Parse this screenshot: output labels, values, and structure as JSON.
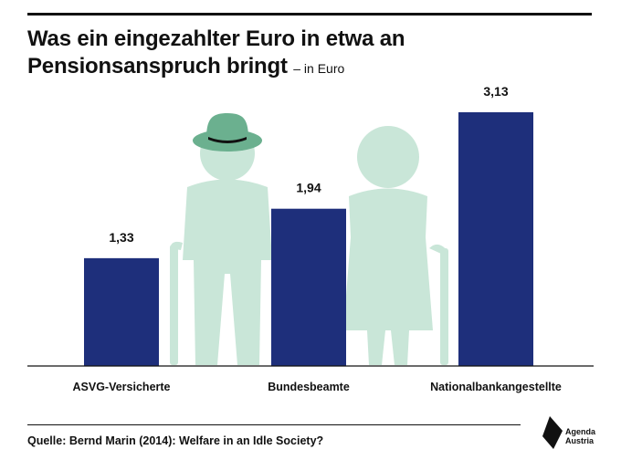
{
  "header": {
    "title_line1": "Was ein eingezahlter Euro in etwa an",
    "title_line2": "Pensionsanspruch bringt",
    "subtitle": "– in Euro"
  },
  "chart_data": {
    "type": "bar",
    "title": "Was ein eingezahlter Euro in etwa an Pensionsanspruch bringt",
    "subtitle": "– in Euro",
    "categories": [
      "ASVG-Versicherte",
      "Bundesbeamte",
      "Nationalbankangestellte"
    ],
    "values": [
      1.33,
      1.94,
      3.13
    ],
    "value_labels": [
      "1,33",
      "1,94",
      "3,13"
    ],
    "ylim": [
      0,
      3.13
    ],
    "grid": false,
    "legend": "none",
    "colors": {
      "bar": "#1e2f7b",
      "illustration": "#c9e6d8",
      "hat": "#6bb08f"
    }
  },
  "footer": {
    "source": "Quelle: Bernd Marin (2014): Welfare in an Idle Society?",
    "logo_line1": "Agenda",
    "logo_line2": "Austria"
  }
}
